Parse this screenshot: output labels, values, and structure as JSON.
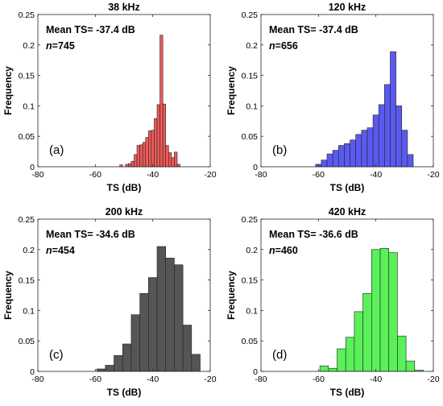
{
  "chart_data": [
    {
      "type": "bar",
      "title": "38 kHz",
      "xlabel": "TS (dB)",
      "ylabel": "Frequency",
      "xlim": [
        -80,
        -20
      ],
      "ylim": [
        0,
        0.25
      ],
      "xticks": [
        "-80",
        "-60",
        "-40",
        "-20"
      ],
      "yticks": [
        "0",
        "0.05",
        "0.1",
        "0.15",
        "0.2",
        "0.25"
      ],
      "bar_color": "#f05a5a",
      "bin_width": 1,
      "x": [
        -51,
        -49,
        -48,
        -47,
        -46,
        -45,
        -44,
        -43,
        -42,
        -41,
        -40,
        -39,
        -38,
        -37,
        -36,
        -35,
        -34,
        -33,
        -32,
        -31
      ],
      "values": [
        0.003,
        0.004,
        0.005,
        0.009,
        0.02,
        0.035,
        0.036,
        0.04,
        0.048,
        0.059,
        0.06,
        0.079,
        0.102,
        0.216,
        0.103,
        0.035,
        0.023,
        0.015,
        0.024,
        0.004
      ],
      "annotation_mean": "Mean TS=  -37.4 dB",
      "annotation_n_label": "n",
      "annotation_n_value": "=745",
      "panel_label": "(a)"
    },
    {
      "type": "bar",
      "title": "120 kHz",
      "xlabel": "TS (dB)",
      "ylabel": "Frequency",
      "xlim": [
        -80,
        -20
      ],
      "ylim": [
        0,
        0.25
      ],
      "xticks": [
        "-80",
        "-60",
        "-40",
        "-20"
      ],
      "yticks": [
        "0",
        "0.05",
        "0.1",
        "0.15",
        "0.2",
        "0.25"
      ],
      "bar_color": "#5a5af0",
      "bin_width": 2,
      "x": [
        -60,
        -58,
        -56,
        -54,
        -52,
        -50,
        -48,
        -46,
        -44,
        -42,
        -40,
        -38,
        -36,
        -34,
        -32,
        -30,
        -28
      ],
      "values": [
        0.004,
        0.011,
        0.021,
        0.027,
        0.035,
        0.038,
        0.044,
        0.053,
        0.06,
        0.064,
        0.085,
        0.102,
        0.135,
        0.189,
        0.1,
        0.06,
        0.02
      ],
      "annotation_mean": "Mean TS=  -37.4 dB",
      "annotation_n_label": "n",
      "annotation_n_value": "=656",
      "panel_label": "(b)"
    },
    {
      "type": "bar",
      "title": "200 kHz",
      "xlabel": "TS (dB)",
      "ylabel": "Frequency",
      "xlim": [
        -80,
        -20
      ],
      "ylim": [
        0,
        0.25
      ],
      "xticks": [
        "-80",
        "-60",
        "-40",
        "-20"
      ],
      "yticks": [
        "0",
        "0.05",
        "0.1",
        "0.15",
        "0.2",
        "0.25"
      ],
      "bar_color": "#555555",
      "bin_width": 3,
      "x": [
        -58,
        -55,
        -52,
        -49,
        -46,
        -43,
        -40,
        -37,
        -34,
        -31,
        -28,
        -25
      ],
      "values": [
        0.004,
        0.01,
        0.026,
        0.045,
        0.093,
        0.128,
        0.154,
        0.205,
        0.186,
        0.175,
        0.076,
        0.028
      ],
      "annotation_mean": "Mean TS=  -34.6 dB",
      "annotation_n_label": "n",
      "annotation_n_value": "=454",
      "panel_label": "(c)"
    },
    {
      "type": "bar",
      "title": "420 kHz",
      "xlabel": "TS (dB)",
      "ylabel": "Frequency",
      "xlim": [
        -80,
        -20
      ],
      "ylim": [
        0,
        0.25
      ],
      "xticks": [
        "-80",
        "-60",
        "-40",
        "-20"
      ],
      "yticks": [
        "0",
        "0.05",
        "0.1",
        "0.15",
        "0.2",
        "0.25"
      ],
      "bar_color": "#5af05a",
      "bin_width": 3,
      "x": [
        -58,
        -55,
        -52,
        -49,
        -46,
        -43,
        -40,
        -37,
        -34,
        -31,
        -28,
        -25
      ],
      "values": [
        0.009,
        0.005,
        0.037,
        0.056,
        0.098,
        0.128,
        0.2,
        0.202,
        0.195,
        0.058,
        0.017,
        0.002
      ],
      "annotation_mean": "Mean TS=  -36.6 dB",
      "annotation_n_label": "n",
      "annotation_n_value": "=460",
      "panel_label": "(d)"
    }
  ]
}
